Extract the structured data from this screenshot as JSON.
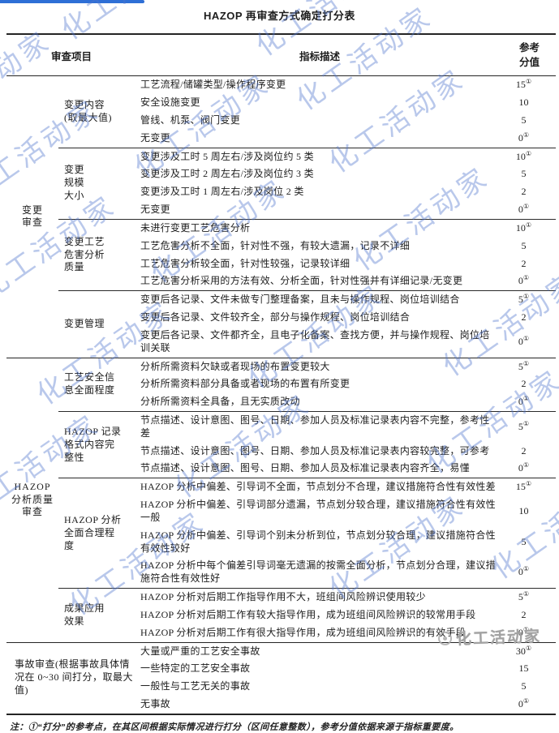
{
  "title": "HAZOP 再审查方式确定打分表",
  "watermark": {
    "text": "化工活动家",
    "logo_text": "化工活动家"
  },
  "table": {
    "headers": {
      "item": "审查项目",
      "desc": "指标描述",
      "score": "参考分值"
    },
    "groups": [
      {
        "item": "变更\n审查",
        "subitems": [
          {
            "label": "变更内容\n(取最大值)",
            "rows": [
              {
                "desc": "工艺流程/储罐类型/操作程序变更",
                "score": "15",
                "sup": "①"
              },
              {
                "desc": "安全设施变更",
                "score": "10",
                "sup": ""
              },
              {
                "desc": "管线、机泵、阀门变更",
                "score": "5",
                "sup": ""
              },
              {
                "desc": "无变更",
                "score": "0",
                "sup": "①"
              }
            ]
          },
          {
            "label": "变更\n规模\n大小",
            "rows": [
              {
                "desc": "变更涉及工时 5 周左右/涉及岗位约 5 类",
                "score": "10",
                "sup": "①"
              },
              {
                "desc": "变更涉及工时 2 周左右/涉及岗位约 3 类",
                "score": "5",
                "sup": ""
              },
              {
                "desc": "变更涉及工时 1 周左右/涉及岗位 2 类",
                "score": "2",
                "sup": ""
              },
              {
                "desc": "无变更",
                "score": "0",
                "sup": "①"
              }
            ]
          },
          {
            "label": "变更工艺\n危害分析\n质量",
            "rows": [
              {
                "desc": "未进行变更工艺危害分析",
                "score": "10",
                "sup": "①"
              },
              {
                "desc": "工艺危害分析不全面，针对性不强，有较大遗漏，记录不详细",
                "score": "5",
                "sup": ""
              },
              {
                "desc": "工艺危害分析较全面，针对性较强，记录较详细",
                "score": "2",
                "sup": ""
              },
              {
                "desc": "工艺危害分析采用的方法有效、分析全面，针对性强并有详细记录/无变更",
                "score": "0",
                "sup": "①"
              }
            ]
          },
          {
            "label": "变更管理",
            "rows": [
              {
                "desc": "变更后各记录、文件未做专门整理备案，且未与操作规程、岗位培训结合",
                "score": "5",
                "sup": "①"
              },
              {
                "desc": "变更后各记录、文件较齐全，部分与操作规程、岗位培训结合",
                "score": "2",
                "sup": ""
              },
              {
                "desc": "变更后各记录、文件都齐全，且电子化备案、查找方便，并与操作规程、岗位培训关联",
                "score": "0",
                "sup": "①"
              }
            ]
          }
        ]
      },
      {
        "item": "HAZOP\n分析质量\n审查",
        "subitems": [
          {
            "label": "工艺安全信\n息全面程度",
            "rows": [
              {
                "desc": "分析所需资料欠缺或者现场的布置变更较大",
                "score": "5",
                "sup": "①"
              },
              {
                "desc": "分析所需资料部分具备或者现场的布置有所变更",
                "score": "2",
                "sup": ""
              },
              {
                "desc": "分析所需资料全具备，且无实质改动",
                "score": "0",
                "sup": "①"
              }
            ]
          },
          {
            "label": "HAZOP 记录\n格式内容完\n整性",
            "rows": [
              {
                "desc": "节点描述、设计意图、图号、日期、参加人员及标准记录表内容不完整，参考性差",
                "score": "5",
                "sup": "①"
              },
              {
                "desc": "节点描述、设计意图、图号、日期、参加人员及标准记录表内容较完整，可参考",
                "score": "2",
                "sup": ""
              },
              {
                "desc": "节点描述、设计意图、图号、日期、参加人员及标准记录表内容齐全，易懂",
                "score": "0",
                "sup": "①"
              }
            ]
          },
          {
            "label": "HAZOP 分析\n全面合理程\n度",
            "rows": [
              {
                "desc": "HAZOP 分析中偏差、引导词不全面，节点划分不合理，建议措施符合性有效性差",
                "score": "15",
                "sup": "①"
              },
              {
                "desc": "HAZOP 分析中偏差、引导词部分遗漏，节点划分较合理，建议措施符合性有效性一般",
                "score": "10",
                "sup": ""
              },
              {
                "desc": "HAZOP 分析中偏差、引导词个别未分析到位，节点划分较合理，建议措施符合性有效性较好",
                "score": "5",
                "sup": ""
              },
              {
                "desc": "HAZOP 分析中每个偏差引导词毫无遗漏的按需全面分析，节点划分合理，建议措施符合性有效性好",
                "score": "0",
                "sup": "①"
              }
            ]
          },
          {
            "label": "成果应用\n效果",
            "rows": [
              {
                "desc": "HAZOP 分析对后期工作指导作用不大，班组间风险辨识使用较少",
                "score": "5",
                "sup": "①"
              },
              {
                "desc": "HAZOP 分析对后期工作有较大指导作用，成为班组间风险辨识的较常用手段",
                "score": "2",
                "sup": ""
              },
              {
                "desc": "HAZOP 分析对后期工作有很大指导作用，成为班组间风险辨识的有效手段",
                "score": "0",
                "sup": "①"
              }
            ]
          }
        ]
      },
      {
        "item": "事故审查(根据事故具体情况在 0~30 间打分，取最大值)",
        "span2": true,
        "subitems": [
          {
            "label": "",
            "rows": [
              {
                "desc": "大量或严重的工艺安全事故",
                "score": "30",
                "sup": "①"
              },
              {
                "desc": "一些特定的工艺安全事故",
                "score": "15",
                "sup": ""
              },
              {
                "desc": "一般性与工艺无关的事故",
                "score": "5",
                "sup": ""
              },
              {
                "desc": "无事故",
                "score": "0",
                "sup": "①"
              }
            ]
          }
        ]
      }
    ]
  },
  "note": "注：①“打分”的参考点，在其区间根据实际情况进行打分（区间任意整数），参考分值依据来源于指标重要度。"
}
